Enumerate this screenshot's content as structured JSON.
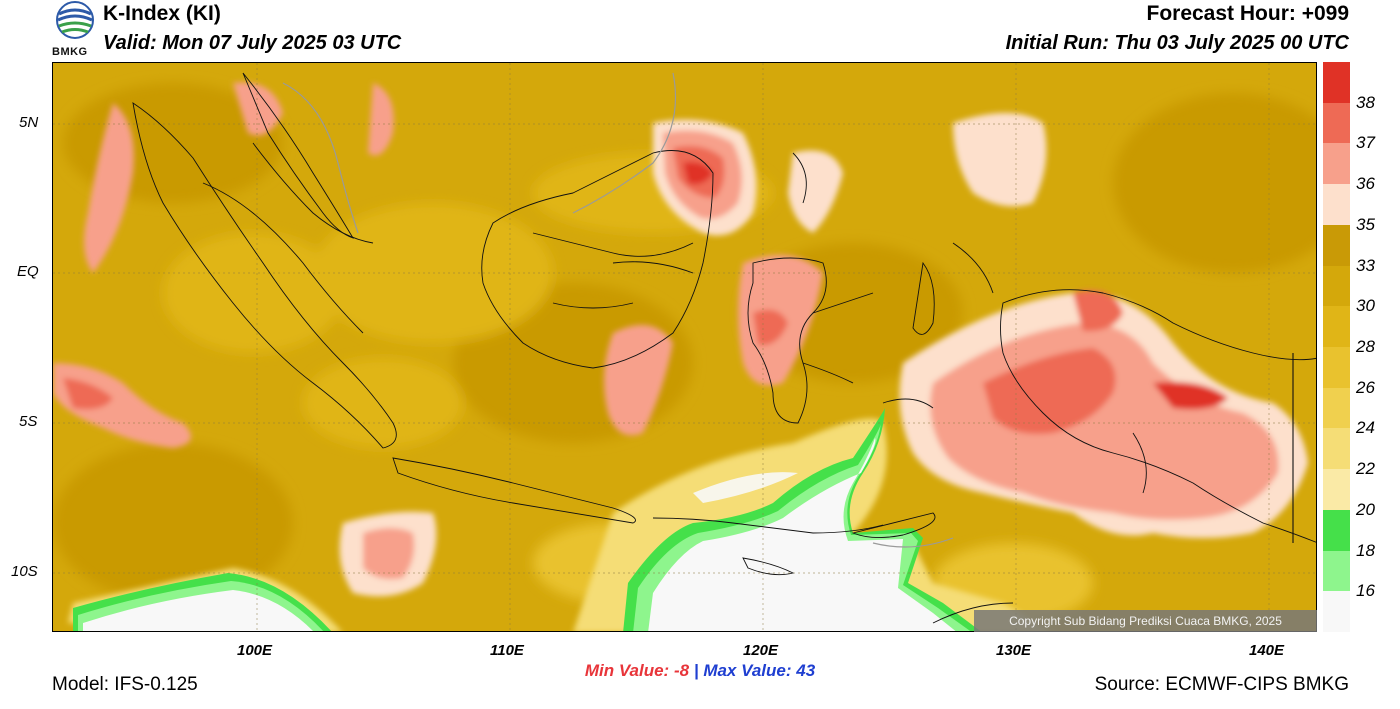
{
  "header": {
    "title": "K-Index (KI)",
    "valid": "Valid: Mon 07 July 2025 03 UTC",
    "forecast_hour": "Forecast Hour: +099",
    "initial_run": "Initial Run: Thu 03 July 2025 00 UTC",
    "logo_text": "BMKG"
  },
  "map": {
    "lat_labels": [
      "5N",
      "EQ",
      "5S",
      "10S"
    ],
    "lon_labels": [
      "100E",
      "110E",
      "120E",
      "130E",
      "140E"
    ],
    "copyright": "Copyright Sub Bidang Prediksi Cuaca BMKG, 2025"
  },
  "colorbar": {
    "labels": [
      "38",
      "37",
      "36",
      "35",
      "33",
      "30",
      "28",
      "26",
      "24",
      "22",
      "20",
      "18",
      "16"
    ],
    "colors": [
      "#e03226",
      "#ee6a55",
      "#f7a08b",
      "#fde0cc",
      "#c99a06",
      "#d4a80b",
      "#e0b517",
      "#e9c22e",
      "#f0d04e",
      "#f5dd76",
      "#faeaa6",
      "#45e04a",
      "#8ef58d",
      "#f8f8f8"
    ]
  },
  "footer": {
    "min_label": "Min Value:",
    "min_value": "-8",
    "separator": "|",
    "max_label": "Max Value:",
    "max_value": "43",
    "model": "Model: IFS-0.125",
    "source": "Source: ECMWF-CIPS BMKG"
  }
}
